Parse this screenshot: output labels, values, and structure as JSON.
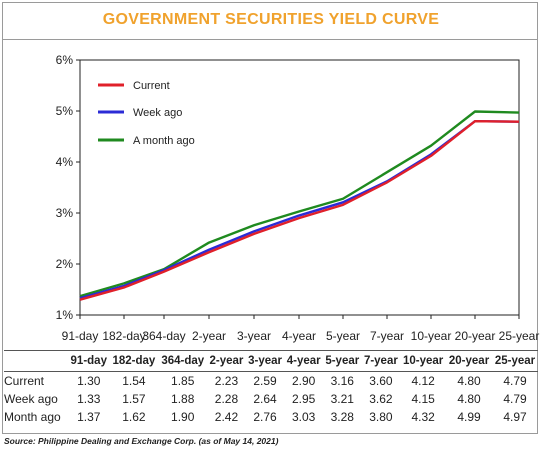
{
  "title": "GOVERNMENT SECURITIES YIELD CURVE",
  "chart_data": {
    "type": "line",
    "categories": [
      "91-day",
      "182-day",
      "364-day",
      "2-year",
      "3-year",
      "4-year",
      "5-year",
      "7-year",
      "10-year",
      "20-year",
      "25-year"
    ],
    "series": [
      {
        "name": "Current",
        "color": "#e0202a",
        "values": [
          1.3,
          1.54,
          1.85,
          2.23,
          2.59,
          2.9,
          3.16,
          3.6,
          4.12,
          4.8,
          4.79
        ]
      },
      {
        "name": "Week ago",
        "color": "#2b2bd6",
        "values": [
          1.33,
          1.57,
          1.88,
          2.28,
          2.64,
          2.95,
          3.21,
          3.62,
          4.15,
          4.8,
          4.79
        ]
      },
      {
        "name": "A month ago",
        "color": "#1f8a1f",
        "values": [
          1.37,
          1.62,
          1.9,
          2.42,
          2.76,
          3.03,
          3.28,
          3.8,
          4.32,
          4.99,
          4.97
        ]
      }
    ],
    "yticks": [
      "1%",
      "2%",
      "3%",
      "4%",
      "5%",
      "6%"
    ],
    "ylim": [
      1,
      6
    ],
    "legend": "top-left",
    "grid": false
  },
  "table": {
    "headers": [
      "91-day",
      "182-day",
      "364-day",
      "2-year",
      "3-year",
      "4-year",
      "5-year",
      "7-year",
      "10-year",
      "20-year",
      "25-year"
    ],
    "rows": [
      {
        "label": "Current",
        "values": [
          "1.30",
          "1.54",
          "1.85",
          "2.23",
          "2.59",
          "2.90",
          "3.16",
          "3.60",
          "4.12",
          "4.80",
          "4.79"
        ]
      },
      {
        "label": "Week ago",
        "values": [
          "1.33",
          "1.57",
          "1.88",
          "2.28",
          "2.64",
          "2.95",
          "3.21",
          "3.62",
          "4.15",
          "4.80",
          "4.79"
        ]
      },
      {
        "label": "Month ago",
        "values": [
          "1.37",
          "1.62",
          "1.90",
          "2.42",
          "2.76",
          "3.03",
          "3.28",
          "3.80",
          "4.32",
          "4.99",
          "4.97"
        ]
      }
    ]
  },
  "source": "Source: Philippine Dealing and Exchange Corp. (as of May 14, 2021)"
}
